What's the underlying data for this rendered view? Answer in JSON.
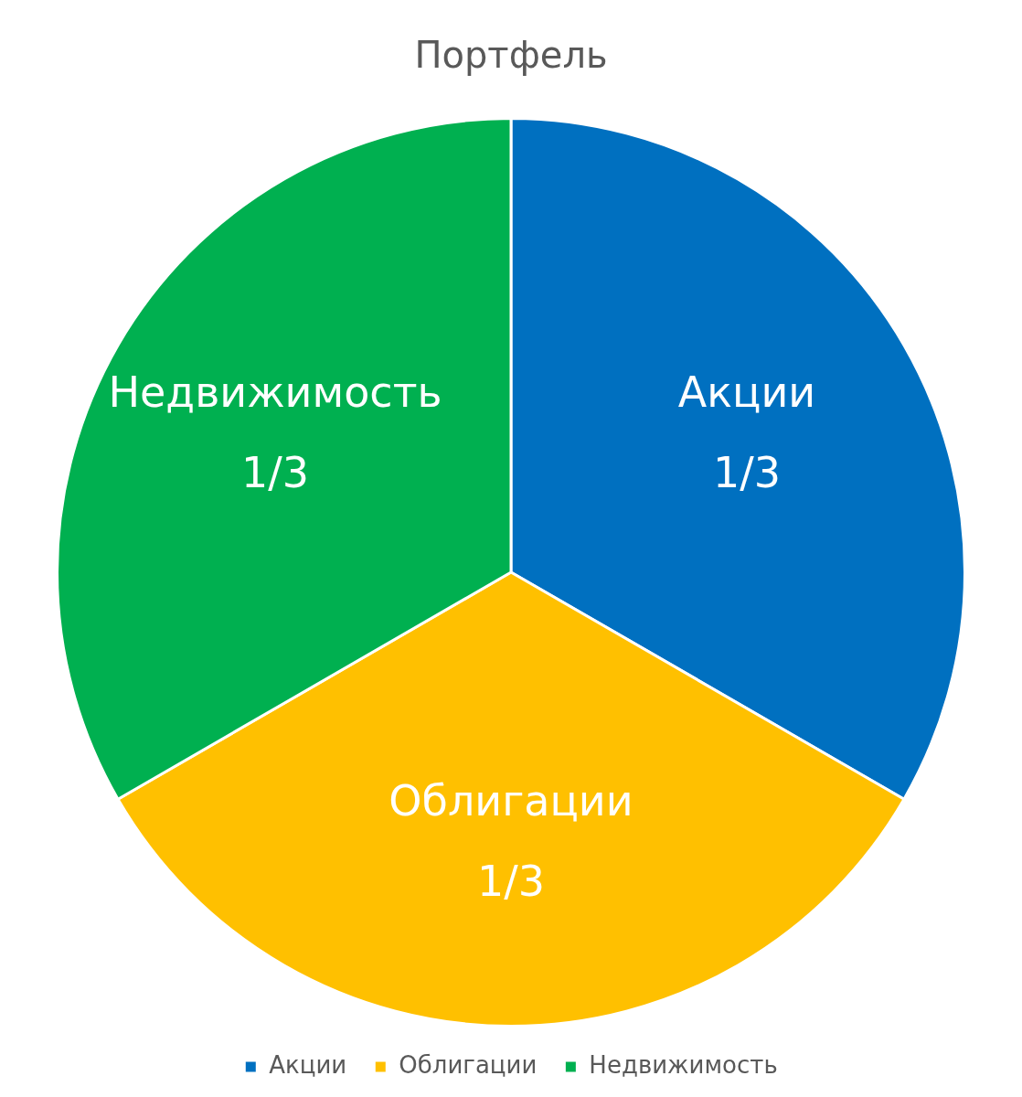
{
  "chart_data": {
    "type": "pie",
    "title": "Портфель",
    "categories": [
      "Акции",
      "Облигации",
      "Недвижимость"
    ],
    "values": [
      0.3333,
      0.3333,
      0.3333
    ],
    "value_labels": [
      "1/3",
      "1/3",
      "1/3"
    ],
    "colors": [
      "#0070c0",
      "#ffc000",
      "#00b050"
    ],
    "legend": "bottom"
  }
}
